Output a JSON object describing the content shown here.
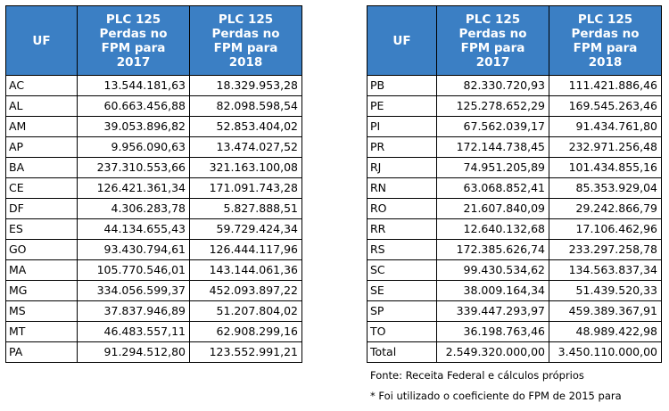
{
  "headers": {
    "uf": "UF",
    "y2017": [
      "PLC 125",
      "Perdas no",
      "FPM para",
      "2017"
    ],
    "y2018": [
      "PLC 125",
      "Perdas no",
      "FPM para",
      "2018"
    ]
  },
  "left_rows": [
    {
      "uf": "AC",
      "v2017": "13.544.181,63",
      "v2018": "18.329.953,28"
    },
    {
      "uf": "AL",
      "v2017": "60.663.456,88",
      "v2018": "82.098.598,54"
    },
    {
      "uf": "AM",
      "v2017": "39.053.896,82",
      "v2018": "52.853.404,02"
    },
    {
      "uf": "AP",
      "v2017": "9.956.090,63",
      "v2018": "13.474.027,52"
    },
    {
      "uf": "BA",
      "v2017": "237.310.553,66",
      "v2018": "321.163.100,08"
    },
    {
      "uf": "CE",
      "v2017": "126.421.361,34",
      "v2018": "171.091.743,28"
    },
    {
      "uf": "DF",
      "v2017": "4.306.283,78",
      "v2018": "5.827.888,51"
    },
    {
      "uf": "ES",
      "v2017": "44.134.655,43",
      "v2018": "59.729.424,34"
    },
    {
      "uf": "GO",
      "v2017": "93.430.794,61",
      "v2018": "126.444.117,96"
    },
    {
      "uf": "MA",
      "v2017": "105.770.546,01",
      "v2018": "143.144.061,36"
    },
    {
      "uf": "MG",
      "v2017": "334.056.599,37",
      "v2018": "452.093.897,22"
    },
    {
      "uf": "MS",
      "v2017": "37.837.946,89",
      "v2018": "51.207.804,02"
    },
    {
      "uf": "MT",
      "v2017": "46.483.557,11",
      "v2018": "62.908.299,16"
    },
    {
      "uf": "PA",
      "v2017": "91.294.512,80",
      "v2018": "123.552.991,21"
    }
  ],
  "right_rows": [
    {
      "uf": "PB",
      "v2017": "82.330.720,93",
      "v2018": "111.421.886,46"
    },
    {
      "uf": "PE",
      "v2017": "125.278.652,29",
      "v2018": "169.545.263,46"
    },
    {
      "uf": "PI",
      "v2017": "67.562.039,17",
      "v2018": "91.434.761,80"
    },
    {
      "uf": "PR",
      "v2017": "172.144.738,45",
      "v2018": "232.971.256,48"
    },
    {
      "uf": "RJ",
      "v2017": "74.951.205,89",
      "v2018": "101.434.855,16"
    },
    {
      "uf": "RN",
      "v2017": "63.068.852,41",
      "v2018": "85.353.929,04"
    },
    {
      "uf": "RO",
      "v2017": "21.607.840,09",
      "v2018": "29.242.866,79"
    },
    {
      "uf": "RR",
      "v2017": "12.640.132,68",
      "v2018": "17.106.462,96"
    },
    {
      "uf": "RS",
      "v2017": "172.385.626,74",
      "v2018": "233.297.258,78"
    },
    {
      "uf": "SC",
      "v2017": "99.430.534,62",
      "v2018": "134.563.837,34"
    },
    {
      "uf": "SE",
      "v2017": "38.009.164,34",
      "v2018": "51.439.520,33"
    },
    {
      "uf": "SP",
      "v2017": "339.447.293,97",
      "v2018": "459.389.367,91"
    },
    {
      "uf": "TO",
      "v2017": "36.198.763,46",
      "v2018": "48.989.422,98"
    },
    {
      "uf": "Total",
      "v2017": "2.549.320.000,00",
      "v2018": "3.450.110.000,00"
    }
  ],
  "source": "Fonte: Receita Federal e cálculos próprios",
  "footnote": "* Foi utilizado o coeficiente do FPM de 2015 para",
  "colors": {
    "header_bg": "#3b7fc4",
    "header_text": "#ffffff",
    "border": "#000000"
  }
}
